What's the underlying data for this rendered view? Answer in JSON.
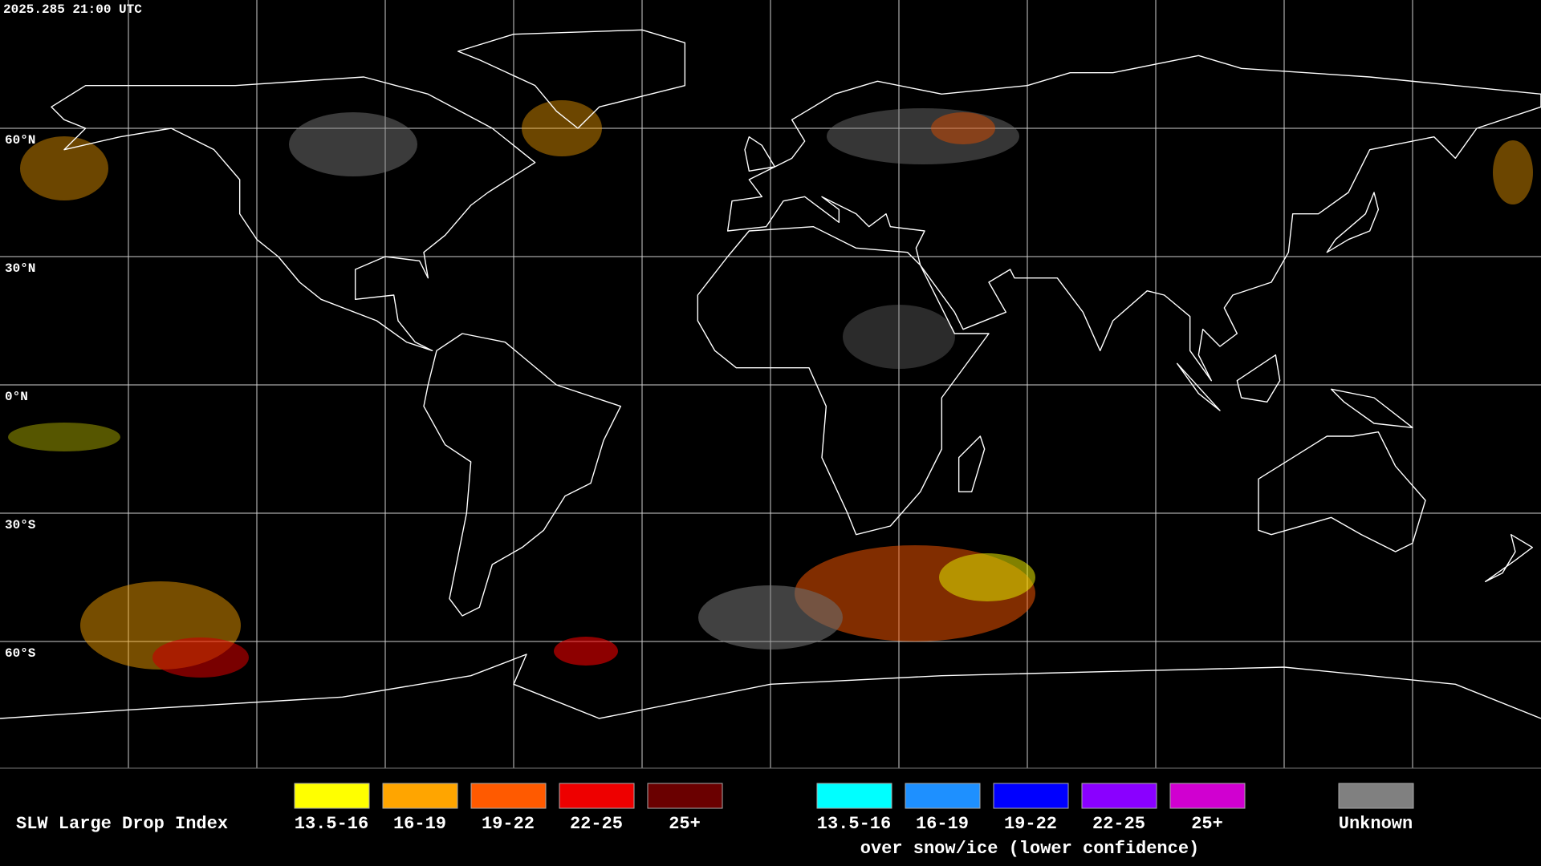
{
  "timestamp": "2025.285 21:00 UTC",
  "latitude_labels": [
    "60°N",
    "30°N",
    "0°N",
    "30°S",
    "60°S"
  ],
  "legend": {
    "title": "SLW Large Drop Index",
    "categories": [
      {
        "label": "13.5-16",
        "color": "#ffff00"
      },
      {
        "label": "16-19",
        "color": "#ffa500"
      },
      {
        "label": "19-22",
        "color": "#ff5a00"
      },
      {
        "label": "22-25",
        "color": "#ee0000"
      },
      {
        "label": "25+",
        "color": "#6a0000"
      }
    ],
    "snow_ice_categories": [
      {
        "label": "13.5-16",
        "color": "#00ffff"
      },
      {
        "label": "16-19",
        "color": "#1e90ff"
      },
      {
        "label": "19-22",
        "color": "#0000ff"
      },
      {
        "label": "22-25",
        "color": "#8a00ff"
      },
      {
        "label": "25+",
        "color": "#d000d0"
      }
    ],
    "snow_ice_note": "over snow/ice (lower confidence)",
    "unknown": {
      "label": "Unknown",
      "color": "#808080"
    }
  }
}
